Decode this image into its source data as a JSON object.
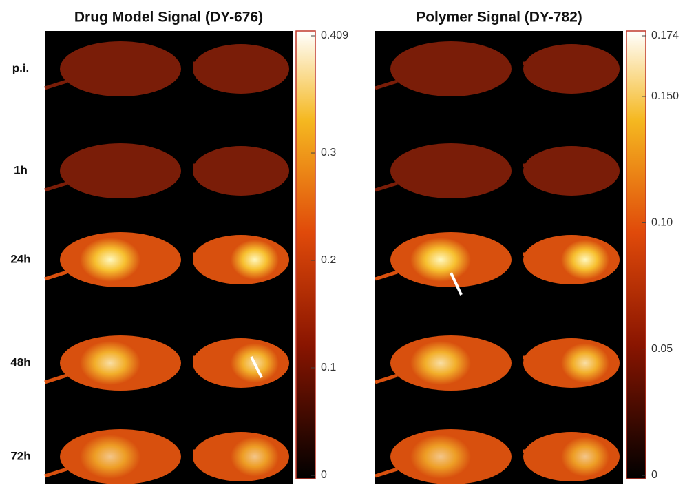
{
  "panels": [
    {
      "title": "Drug Model Signal (DY-676)",
      "colorbar": {
        "lim": [
          0,
          0.409
        ],
        "ticks": [
          0.409,
          0.3,
          0.2,
          0.1,
          0
        ]
      }
    },
    {
      "title": "Polymer Signal (DY-782)",
      "colorbar": {
        "lim": [
          0,
          0.174
        ],
        "ticks": [
          0.174,
          {
            "value": 0.15,
            "label": "0.150"
          },
          {
            "value": 0.1,
            "label": "0.10"
          },
          0.05,
          0
        ]
      }
    }
  ],
  "rows": [
    "p.i.",
    "1h",
    "24h",
    "48h",
    "72h"
  ]
}
